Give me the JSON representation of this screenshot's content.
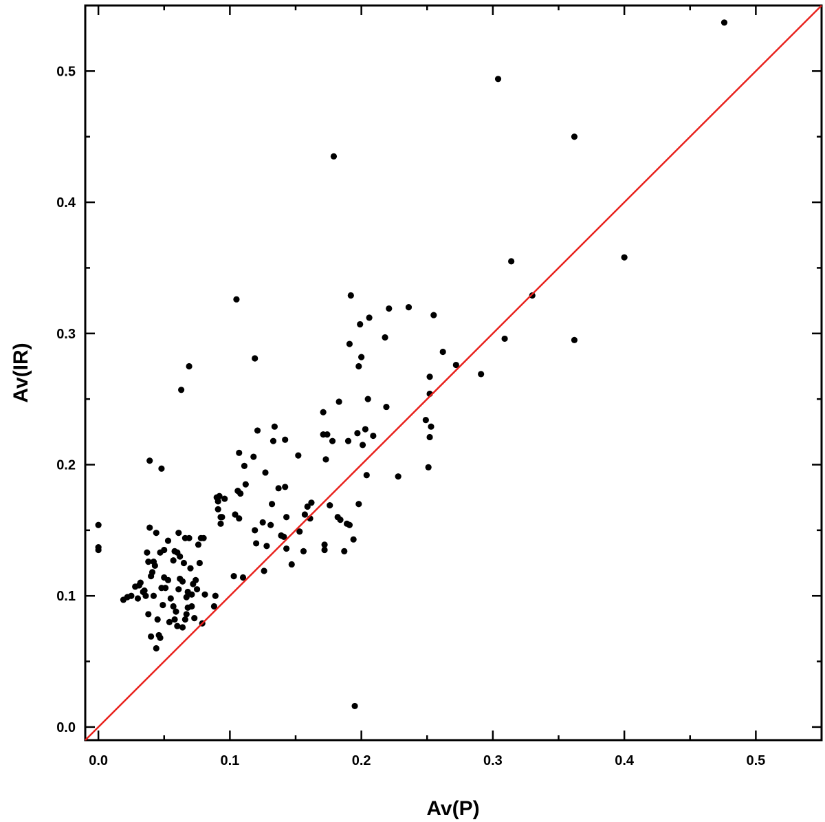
{
  "chart_data": {
    "type": "scatter",
    "title": "",
    "xlabel": "Av(P)",
    "ylabel": "Av(IR)",
    "xlim": [
      -0.01,
      0.55
    ],
    "ylim": [
      -0.01,
      0.55
    ],
    "x_ticks": [
      "0.0",
      "0.1",
      "0.2",
      "0.3",
      "0.4",
      "0.5"
    ],
    "y_ticks": [
      "0.0",
      "0.1",
      "0.2",
      "0.3",
      "0.4",
      "0.5"
    ],
    "grid": false,
    "reference_line": {
      "from": [
        -0.01,
        -0.01
      ],
      "to": [
        0.55,
        0.55
      ],
      "color": "#e8211c"
    },
    "point_color": "#000000",
    "points": [
      [
        0.0,
        0.154
      ],
      [
        0.0,
        0.137
      ],
      [
        0.0,
        0.135
      ],
      [
        0.019,
        0.097
      ],
      [
        0.022,
        0.099
      ],
      [
        0.025,
        0.1
      ],
      [
        0.028,
        0.107
      ],
      [
        0.03,
        0.098
      ],
      [
        0.031,
        0.108
      ],
      [
        0.032,
        0.11
      ],
      [
        0.034,
        0.103
      ],
      [
        0.035,
        0.104
      ],
      [
        0.036,
        0.1
      ],
      [
        0.037,
        0.133
      ],
      [
        0.038,
        0.086
      ],
      [
        0.038,
        0.126
      ],
      [
        0.039,
        0.152
      ],
      [
        0.039,
        0.203
      ],
      [
        0.04,
        0.069
      ],
      [
        0.04,
        0.115
      ],
      [
        0.041,
        0.118
      ],
      [
        0.042,
        0.1
      ],
      [
        0.042,
        0.126
      ],
      [
        0.043,
        0.123
      ],
      [
        0.044,
        0.148
      ],
      [
        0.044,
        0.06
      ],
      [
        0.045,
        0.082
      ],
      [
        0.046,
        0.07
      ],
      [
        0.047,
        0.133
      ],
      [
        0.047,
        0.068
      ],
      [
        0.048,
        0.106
      ],
      [
        0.048,
        0.197
      ],
      [
        0.049,
        0.093
      ],
      [
        0.05,
        0.135
      ],
      [
        0.05,
        0.114
      ],
      [
        0.051,
        0.106
      ],
      [
        0.053,
        0.112
      ],
      [
        0.053,
        0.142
      ],
      [
        0.054,
        0.08
      ],
      [
        0.055,
        0.098
      ],
      [
        0.057,
        0.092
      ],
      [
        0.057,
        0.127
      ],
      [
        0.058,
        0.134
      ],
      [
        0.058,
        0.082
      ],
      [
        0.059,
        0.088
      ],
      [
        0.06,
        0.133
      ],
      [
        0.06,
        0.077
      ],
      [
        0.061,
        0.148
      ],
      [
        0.061,
        0.105
      ],
      [
        0.062,
        0.113
      ],
      [
        0.062,
        0.13
      ],
      [
        0.063,
        0.257
      ],
      [
        0.064,
        0.076
      ],
      [
        0.064,
        0.111
      ],
      [
        0.065,
        0.125
      ],
      [
        0.066,
        0.144
      ],
      [
        0.066,
        0.082
      ],
      [
        0.067,
        0.086
      ],
      [
        0.067,
        0.099
      ],
      [
        0.068,
        0.103
      ],
      [
        0.068,
        0.091
      ],
      [
        0.069,
        0.144
      ],
      [
        0.069,
        0.275
      ],
      [
        0.07,
        0.121
      ],
      [
        0.071,
        0.092
      ],
      [
        0.071,
        0.101
      ],
      [
        0.072,
        0.109
      ],
      [
        0.073,
        0.083
      ],
      [
        0.074,
        0.112
      ],
      [
        0.075,
        0.105
      ],
      [
        0.076,
        0.139
      ],
      [
        0.077,
        0.125
      ],
      [
        0.078,
        0.144
      ],
      [
        0.079,
        0.079
      ],
      [
        0.08,
        0.144
      ],
      [
        0.081,
        0.101
      ],
      [
        0.088,
        0.092
      ],
      [
        0.089,
        0.1
      ],
      [
        0.09,
        0.175
      ],
      [
        0.091,
        0.172
      ],
      [
        0.091,
        0.166
      ],
      [
        0.092,
        0.176
      ],
      [
        0.093,
        0.16
      ],
      [
        0.093,
        0.155
      ],
      [
        0.094,
        0.16
      ],
      [
        0.096,
        0.174
      ],
      [
        0.103,
        0.115
      ],
      [
        0.104,
        0.162
      ],
      [
        0.105,
        0.326
      ],
      [
        0.106,
        0.18
      ],
      [
        0.107,
        0.159
      ],
      [
        0.107,
        0.209
      ],
      [
        0.108,
        0.178
      ],
      [
        0.11,
        0.114
      ],
      [
        0.111,
        0.199
      ],
      [
        0.112,
        0.185
      ],
      [
        0.118,
        0.206
      ],
      [
        0.119,
        0.281
      ],
      [
        0.119,
        0.15
      ],
      [
        0.12,
        0.14
      ],
      [
        0.121,
        0.226
      ],
      [
        0.125,
        0.156
      ],
      [
        0.126,
        0.119
      ],
      [
        0.127,
        0.194
      ],
      [
        0.128,
        0.138
      ],
      [
        0.131,
        0.154
      ],
      [
        0.132,
        0.17
      ],
      [
        0.133,
        0.218
      ],
      [
        0.134,
        0.229
      ],
      [
        0.137,
        0.182
      ],
      [
        0.139,
        0.146
      ],
      [
        0.141,
        0.145
      ],
      [
        0.142,
        0.183
      ],
      [
        0.142,
        0.219
      ],
      [
        0.143,
        0.136
      ],
      [
        0.143,
        0.16
      ],
      [
        0.147,
        0.124
      ],
      [
        0.152,
        0.207
      ],
      [
        0.153,
        0.149
      ],
      [
        0.156,
        0.134
      ],
      [
        0.157,
        0.162
      ],
      [
        0.159,
        0.168
      ],
      [
        0.161,
        0.159
      ],
      [
        0.162,
        0.171
      ],
      [
        0.171,
        0.24
      ],
      [
        0.171,
        0.223
      ],
      [
        0.172,
        0.139
      ],
      [
        0.172,
        0.135
      ],
      [
        0.173,
        0.204
      ],
      [
        0.174,
        0.223
      ],
      [
        0.176,
        0.169
      ],
      [
        0.178,
        0.218
      ],
      [
        0.179,
        0.435
      ],
      [
        0.182,
        0.16
      ],
      [
        0.183,
        0.248
      ],
      [
        0.184,
        0.158
      ],
      [
        0.187,
        0.134
      ],
      [
        0.189,
        0.155
      ],
      [
        0.19,
        0.218
      ],
      [
        0.191,
        0.292
      ],
      [
        0.191,
        0.154
      ],
      [
        0.192,
        0.329
      ],
      [
        0.194,
        0.143
      ],
      [
        0.195,
        0.016
      ],
      [
        0.197,
        0.224
      ],
      [
        0.198,
        0.275
      ],
      [
        0.198,
        0.17
      ],
      [
        0.199,
        0.307
      ],
      [
        0.2,
        0.282
      ],
      [
        0.201,
        0.215
      ],
      [
        0.203,
        0.227
      ],
      [
        0.204,
        0.192
      ],
      [
        0.205,
        0.25
      ],
      [
        0.206,
        0.312
      ],
      [
        0.209,
        0.222
      ],
      [
        0.218,
        0.297
      ],
      [
        0.219,
        0.244
      ],
      [
        0.221,
        0.319
      ],
      [
        0.228,
        0.191
      ],
      [
        0.236,
        0.32
      ],
      [
        0.249,
        0.234
      ],
      [
        0.251,
        0.198
      ],
      [
        0.252,
        0.267
      ],
      [
        0.252,
        0.254
      ],
      [
        0.252,
        0.221
      ],
      [
        0.253,
        0.229
      ],
      [
        0.255,
        0.314
      ],
      [
        0.262,
        0.286
      ],
      [
        0.272,
        0.276
      ],
      [
        0.291,
        0.269
      ],
      [
        0.304,
        0.494
      ],
      [
        0.309,
        0.296
      ],
      [
        0.314,
        0.355
      ],
      [
        0.33,
        0.329
      ],
      [
        0.362,
        0.45
      ],
      [
        0.362,
        0.295
      ],
      [
        0.4,
        0.358
      ],
      [
        0.476,
        0.537
      ]
    ]
  }
}
